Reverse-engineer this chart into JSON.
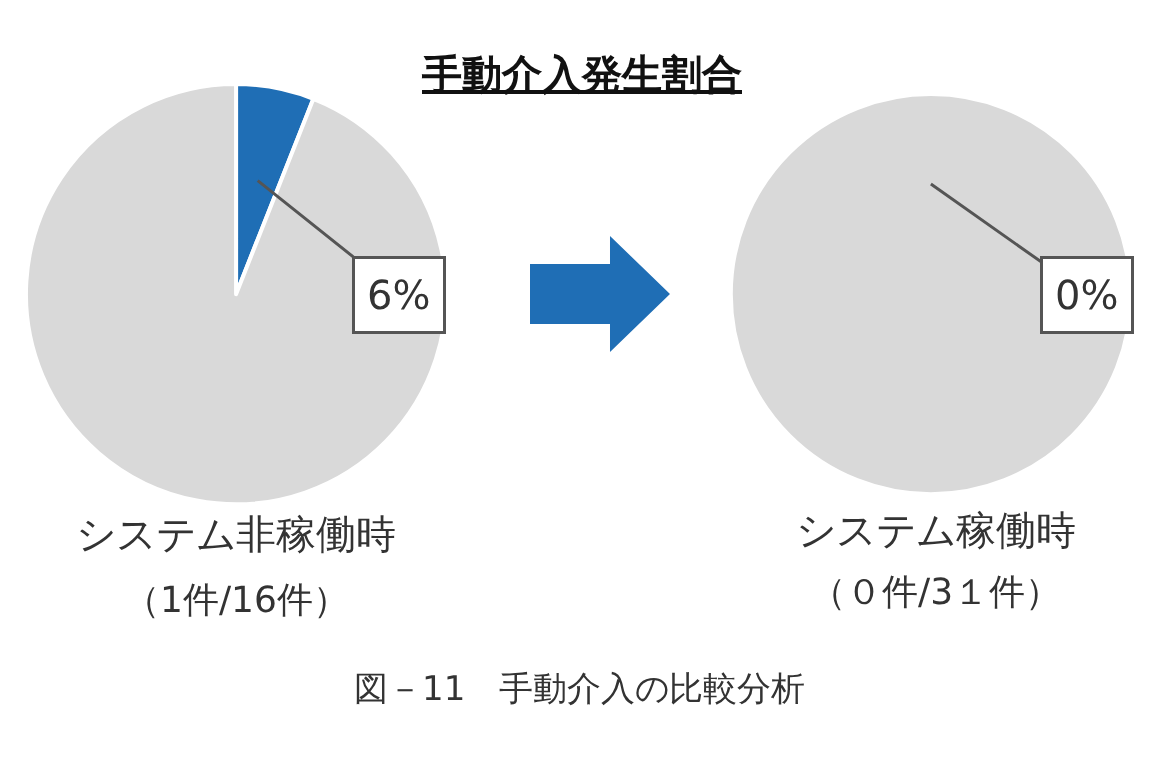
{
  "chart_data": [
    {
      "type": "pie",
      "title": "手動介入発生割合",
      "categories": [
        null,
        null
      ],
      "values": [
        6,
        94
      ],
      "colors": [
        "#1f6eb5",
        "#d9d9d9"
      ],
      "value_labels": [
        "6%",
        null
      ],
      "annotations": [
        "システム非稼働時",
        "（1件/16件）"
      ]
    },
    {
      "type": "pie",
      "categories": [
        null,
        null
      ],
      "values": [
        0,
        100
      ],
      "colors": [
        "#1f6eb5",
        "#d9d9d9"
      ],
      "value_labels": [
        "0%",
        null
      ],
      "annotations": [
        "システム稼働時",
        "（０件/3１件）",
        "図－11　手動介入の比較分析"
      ]
    }
  ]
}
